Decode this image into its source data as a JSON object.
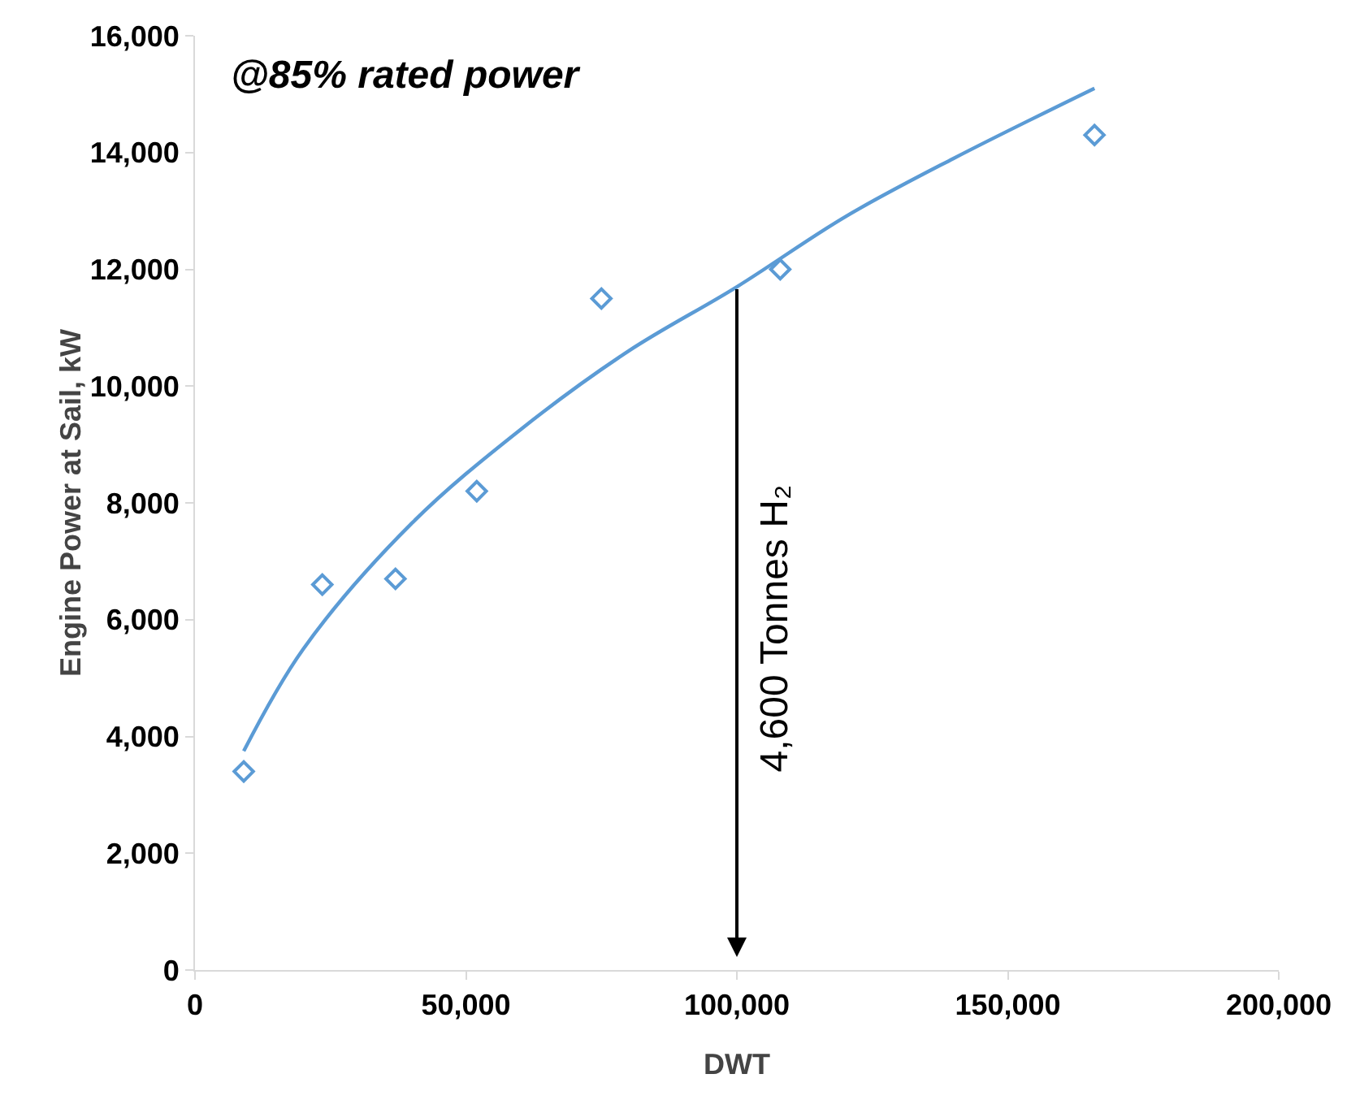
{
  "chart_data": {
    "type": "scatter",
    "xlabel": "DWT",
    "ylabel": "Engine Power at Sail, kW",
    "xlim": [
      0,
      200000
    ],
    "xticks": [
      {
        "value": 0,
        "label": "0"
      },
      {
        "value": 50000,
        "label": "50,000"
      },
      {
        "value": 100000,
        "label": "100,000"
      },
      {
        "value": 150000,
        "label": "150,000"
      },
      {
        "value": 200000,
        "label": "200,000"
      }
    ],
    "ylim": [
      0,
      16000
    ],
    "yticks": [
      {
        "value": 0,
        "label": "0"
      },
      {
        "value": 2000,
        "label": "2,000"
      },
      {
        "value": 4000,
        "label": "4,000"
      },
      {
        "value": 6000,
        "label": "6,000"
      },
      {
        "value": 8000,
        "label": "8,000"
      },
      {
        "value": 10000,
        "label": "10,000"
      },
      {
        "value": 12000,
        "label": "12,000"
      },
      {
        "value": 14000,
        "label": "14,000"
      },
      {
        "value": 16000,
        "label": "16,000"
      }
    ],
    "series": [
      {
        "marker": "diamond",
        "color": "#5b9bd5",
        "x": [
          9000,
          23500,
          37000,
          52000,
          75000,
          108000,
          166000
        ],
        "values": [
          3400,
          6600,
          6700,
          8200,
          11500,
          12000,
          14300
        ]
      },
      {
        "type": "line",
        "marker": "none",
        "color": "#5b9bd5",
        "x": [
          9000,
          20000,
          40000,
          60000,
          80000,
          100000,
          120000,
          140000,
          166000
        ],
        "values": [
          3750,
          5500,
          7650,
          9250,
          10600,
          11700,
          12900,
          13900,
          15100
        ]
      }
    ],
    "annotations": [
      "@85% rated power"
    ],
    "ref_lines": [
      {
        "axis": "x",
        "value": 100000,
        "label": "4,600 Tonnes H₂",
        "color": "#000000"
      }
    ],
    "grid": false
  }
}
